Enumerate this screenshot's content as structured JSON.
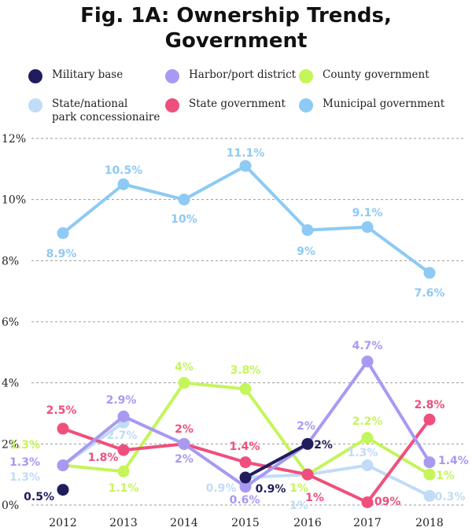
{
  "title_line1": "Fig. 1A: Ownership Trends,",
  "title_line2": "Government",
  "chart_data": {
    "type": "line",
    "title": "Fig. 1A: Ownership Trends, Government",
    "xlabel": "",
    "ylabel": "",
    "ylim": [
      0,
      12
    ],
    "y_ticks": [
      {
        "value": 0,
        "label": "0%"
      },
      {
        "value": 2,
        "label": "2%"
      },
      {
        "value": 4,
        "label": "4%"
      },
      {
        "value": 6,
        "label": "6%"
      },
      {
        "value": 8,
        "label": "8%"
      },
      {
        "value": 10,
        "label": "10%"
      },
      {
        "value": 12,
        "label": "12%"
      }
    ],
    "grid": true,
    "legend_position": "top",
    "categories": [
      "2012",
      "2013",
      "2014",
      "2015",
      "2016",
      "2017",
      "2018"
    ],
    "series": [
      {
        "key": "military",
        "name": "Military base",
        "color": "#1f1d5c",
        "values": [
          0.5,
          null,
          null,
          0.9,
          2.0,
          null,
          null
        ],
        "labels": [
          "0.5%",
          null,
          null,
          "0.9%",
          "2%",
          null,
          null
        ]
      },
      {
        "key": "harbor",
        "name": "Harbor/port district",
        "color": "#a899f2",
        "values": [
          1.3,
          2.9,
          2.0,
          0.6,
          2.0,
          4.7,
          1.4
        ],
        "labels": [
          "1.3%",
          "2.9%",
          "2%",
          "0.6%",
          "2%",
          "4.7%",
          "1.4%"
        ]
      },
      {
        "key": "county",
        "name": "County government",
        "color": "#c4f55a",
        "values": [
          1.3,
          1.1,
          4.0,
          3.8,
          1.0,
          2.2,
          1.0
        ],
        "labels": [
          "1.3%",
          "1.1%",
          "4%",
          "3.8%",
          "1%",
          "2.2%",
          "1%"
        ]
      },
      {
        "key": "park",
        "name": "State/national\npark concessionaire",
        "color": "#c0dcf7",
        "values": [
          1.3,
          2.7,
          null,
          0.9,
          1.0,
          1.3,
          0.3
        ],
        "labels": [
          "1.3%",
          "2.7%",
          null,
          "0.9%",
          "1%",
          "1.3%",
          "0.3%"
        ]
      },
      {
        "key": "state",
        "name": "State government",
        "color": "#ef4f7c",
        "values": [
          2.5,
          1.8,
          2.0,
          1.4,
          1.0,
          0.09,
          2.8
        ],
        "labels": [
          "2.5%",
          "1.8%",
          "2%",
          "1.4%",
          "1%",
          ".09%",
          "2.8%"
        ]
      },
      {
        "key": "municipal",
        "name": "Municipal government",
        "color": "#8dcaf5",
        "values": [
          8.9,
          10.5,
          10.0,
          11.1,
          9.0,
          9.1,
          7.6
        ],
        "labels": [
          "8.9%",
          "10.5%",
          "10%",
          "11.1%",
          "9%",
          "9.1%",
          "7.6%"
        ]
      }
    ]
  }
}
